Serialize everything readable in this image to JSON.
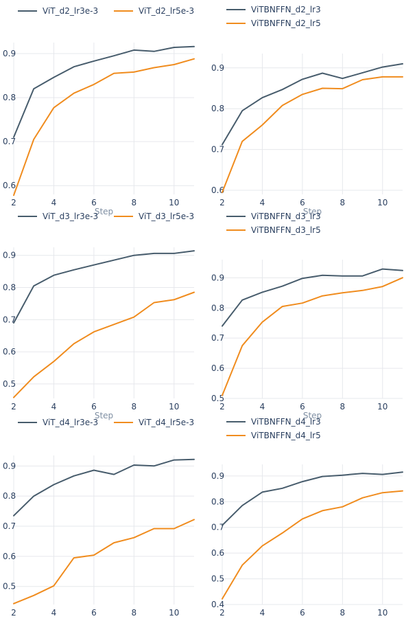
{
  "colors": {
    "blue": "#475c6c",
    "orange": "#f08c1e",
    "grid": "#e6e8ec",
    "tick": "#2a3f5f",
    "axis_title": "#7f8fa3"
  },
  "chart_data": [
    {
      "type": "line",
      "xlabel": "Step",
      "xlim": [
        2,
        11
      ],
      "ylim": [
        0.58,
        0.925
      ],
      "xticks": [
        2,
        4,
        6,
        8,
        10
      ],
      "yticks": [
        0.6,
        0.7,
        0.8,
        0.9
      ],
      "yticklabels": [
        "0.6",
        "0.7",
        "0.8",
        "0.9"
      ],
      "legend": "top-left, horizontal",
      "grid": true,
      "x": [
        2,
        3,
        4,
        5,
        6,
        7,
        8,
        9,
        10,
        11
      ],
      "series": [
        {
          "name": "ViT_d2_lr3e-3",
          "color": "#475c6c",
          "values": [
            0.71,
            0.82,
            0.846,
            0.87,
            0.883,
            0.895,
            0.908,
            0.905,
            0.914,
            0.916
          ]
        },
        {
          "name": "ViT_d2_lr5e-3",
          "color": "#f08c1e",
          "values": [
            0.578,
            0.705,
            0.777,
            0.81,
            0.83,
            0.855,
            0.858,
            0.868,
            0.875,
            0.888
          ]
        }
      ]
    },
    {
      "type": "line",
      "xlabel": "Step",
      "xlim": [
        2,
        11
      ],
      "ylim": [
        0.59,
        0.935
      ],
      "xticks": [
        2,
        4,
        6,
        8,
        10
      ],
      "yticks": [
        0.6,
        0.7,
        0.8,
        0.9
      ],
      "yticklabels": [
        "0.6",
        "0.7",
        "0.8",
        "0.9"
      ],
      "legend": "top, vertical",
      "grid": true,
      "x": [
        2,
        3,
        4,
        5,
        6,
        7,
        8,
        9,
        10,
        11
      ],
      "series": [
        {
          "name": "ViTBNFFN_d2_lr3",
          "color": "#475c6c",
          "values": [
            0.712,
            0.795,
            0.827,
            0.847,
            0.872,
            0.887,
            0.874,
            0.888,
            0.902,
            0.91
          ]
        },
        {
          "name": "ViTBNFFN_d2_lr5",
          "color": "#f08c1e",
          "values": [
            0.595,
            0.72,
            0.76,
            0.808,
            0.835,
            0.85,
            0.849,
            0.871,
            0.878,
            0.878
          ]
        }
      ]
    },
    {
      "type": "line",
      "xlabel": "Step",
      "xlim": [
        2,
        11
      ],
      "ylim": [
        0.455,
        0.925
      ],
      "xticks": [
        2,
        4,
        6,
        8,
        10
      ],
      "yticks": [
        0.5,
        0.6,
        0.7,
        0.8,
        0.9
      ],
      "yticklabels": [
        "0.5",
        "0.6",
        "0.7",
        "0.8",
        "0.9"
      ],
      "legend": "top-left, horizontal",
      "grid": true,
      "x": [
        2,
        3,
        4,
        5,
        6,
        7,
        8,
        9,
        10,
        11
      ],
      "series": [
        {
          "name": "ViT_d3_lr3e-3",
          "color": "#475c6c",
          "values": [
            0.69,
            0.805,
            0.838,
            0.855,
            0.87,
            0.885,
            0.9,
            0.906,
            0.906,
            0.914
          ]
        },
        {
          "name": "ViT_d3_lr5e-3",
          "color": "#f08c1e",
          "values": [
            0.458,
            0.522,
            0.57,
            0.625,
            0.662,
            0.685,
            0.708,
            0.753,
            0.762,
            0.785
          ]
        }
      ]
    },
    {
      "type": "line",
      "xlabel": "Step",
      "xlim": [
        2,
        11
      ],
      "ylim": [
        0.5,
        0.96
      ],
      "xticks": [
        2,
        4,
        6,
        8,
        10
      ],
      "yticks": [
        0.5,
        0.6,
        0.7,
        0.8,
        0.9
      ],
      "yticklabels": [
        "0.5",
        "0.6",
        "0.7",
        "0.8",
        "0.9"
      ],
      "legend": "top, vertical",
      "grid": true,
      "x": [
        2,
        3,
        4,
        5,
        6,
        7,
        8,
        9,
        10,
        11
      ],
      "series": [
        {
          "name": "ViTBNFFN_d3_lr3",
          "color": "#475c6c",
          "values": [
            0.74,
            0.826,
            0.852,
            0.872,
            0.898,
            0.908,
            0.906,
            0.906,
            0.929,
            0.924
          ]
        },
        {
          "name": "ViTBNFFN_d3_lr5",
          "color": "#f08c1e",
          "values": [
            0.51,
            0.675,
            0.753,
            0.805,
            0.816,
            0.84,
            0.85,
            0.858,
            0.871,
            0.9
          ]
        }
      ]
    },
    {
      "type": "line",
      "xlabel": "Step",
      "xlim": [
        2,
        11
      ],
      "ylim": [
        0.44,
        0.935
      ],
      "xticks": [
        2,
        4,
        6,
        8,
        10
      ],
      "yticks": [
        0.5,
        0.6,
        0.7,
        0.8,
        0.9
      ],
      "yticklabels": [
        "0.5",
        "0.6",
        "0.7",
        "0.8",
        "0.9"
      ],
      "legend": "top-left, horizontal",
      "grid": true,
      "x": [
        2,
        3,
        4,
        5,
        6,
        7,
        8,
        9,
        10,
        11
      ],
      "series": [
        {
          "name": "ViT_d4_lr3e-3",
          "color": "#475c6c",
          "values": [
            0.735,
            0.8,
            0.838,
            0.867,
            0.886,
            0.872,
            0.903,
            0.9,
            0.92,
            0.922
          ]
        },
        {
          "name": "ViT_d4_lr5e-3",
          "color": "#f08c1e",
          "values": [
            0.443,
            0.47,
            0.502,
            0.595,
            0.604,
            0.645,
            0.662,
            0.692,
            0.692,
            0.722
          ]
        }
      ]
    },
    {
      "type": "line",
      "xlabel": "Step",
      "xlim": [
        2,
        11
      ],
      "ylim": [
        0.4,
        0.945
      ],
      "xticks": [
        2,
        4,
        6,
        8,
        10
      ],
      "yticks": [
        0.4,
        0.5,
        0.6,
        0.7,
        0.8,
        0.9
      ],
      "yticklabels": [
        "0.4",
        "0.5",
        "0.6",
        "0.7",
        "0.8",
        "0.9"
      ],
      "legend": "top, vertical",
      "grid": true,
      "x": [
        2,
        3,
        4,
        5,
        6,
        7,
        8,
        9,
        10,
        11
      ],
      "series": [
        {
          "name": "ViTBNFFN_d4_lr3",
          "color": "#475c6c",
          "values": [
            0.708,
            0.785,
            0.837,
            0.852,
            0.878,
            0.898,
            0.903,
            0.91,
            0.906,
            0.915
          ]
        },
        {
          "name": "ViTBNFFN_d4_lr5",
          "color": "#f08c1e",
          "values": [
            0.422,
            0.553,
            0.628,
            0.678,
            0.733,
            0.765,
            0.78,
            0.815,
            0.835,
            0.842
          ]
        }
      ]
    }
  ]
}
